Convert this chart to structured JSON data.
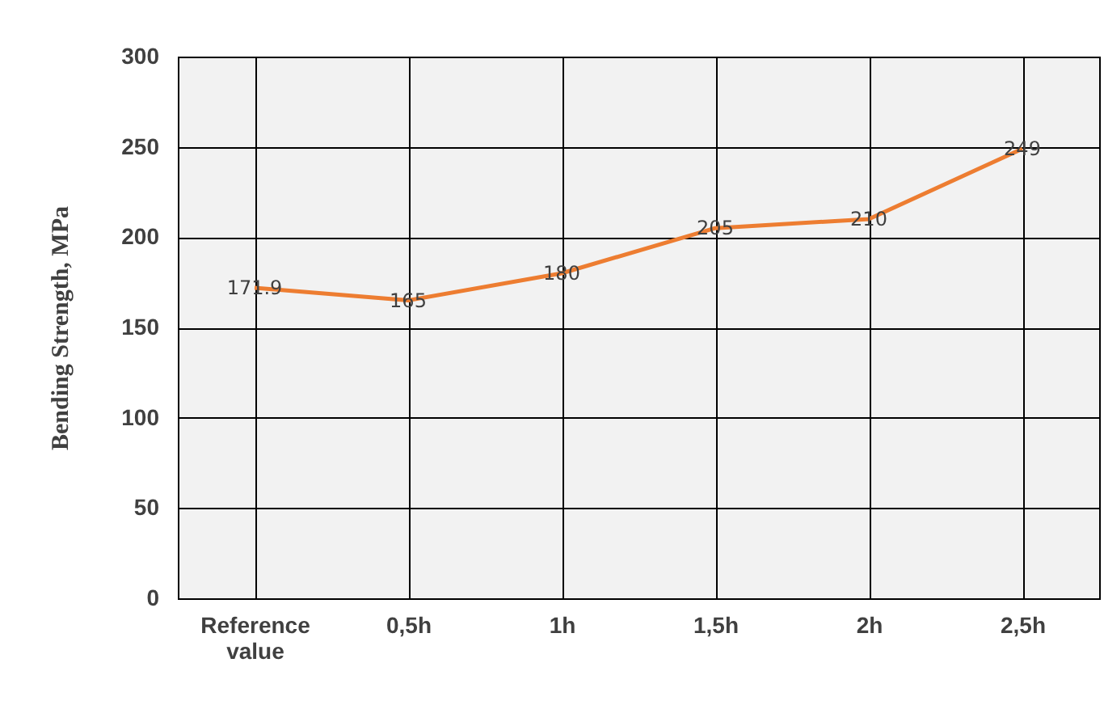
{
  "chart_data": {
    "type": "line",
    "ylabel": "Bending Strength,  MPa",
    "categories": [
      "Reference value",
      "0,5h",
      "1h",
      "1,5h",
      "2h",
      "2,5h"
    ],
    "series": [
      {
        "color": "#ed7d31",
        "values": [
          171.9,
          165,
          180,
          205,
          210,
          249
        ]
      }
    ],
    "ylim": [
      0,
      300
    ],
    "yticks": [
      0,
      50,
      100,
      150,
      200,
      250,
      300
    ],
    "grid": true,
    "data_labels": true,
    "marker": "none",
    "line_style": "solid"
  }
}
